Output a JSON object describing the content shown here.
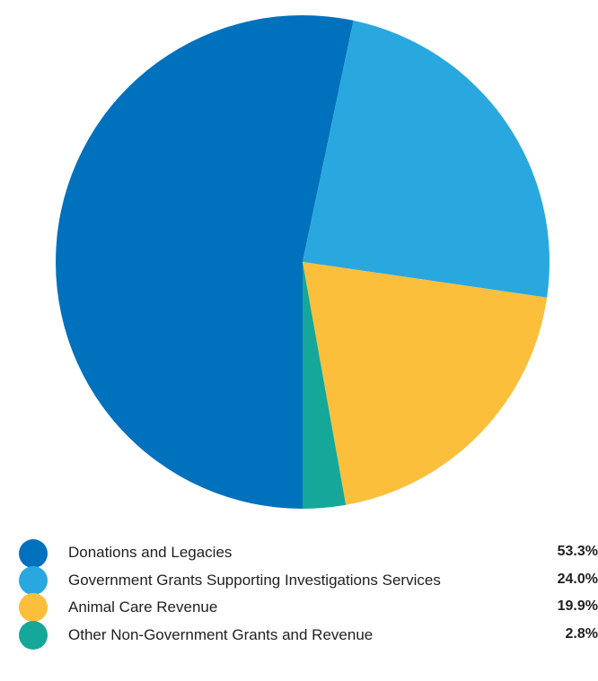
{
  "chart_data": {
    "type": "pie",
    "title": "",
    "slices": [
      {
        "label": "Donations and Legacies",
        "value": 53.3,
        "display": "53.3%",
        "color": "#0071bd"
      },
      {
        "label": "Government Grants Supporting Investigations Services",
        "value": 24.0,
        "display": "24.0%",
        "color": "#29a8e0"
      },
      {
        "label": "Animal Care Revenue",
        "value": 19.9,
        "display": "19.9%",
        "color": "#fcbf3b"
      },
      {
        "label": "Other Non-Government Grants and Revenue",
        "value": 2.8,
        "display": "2.8%",
        "color": "#15a79a"
      }
    ],
    "legend_position": "bottom"
  }
}
